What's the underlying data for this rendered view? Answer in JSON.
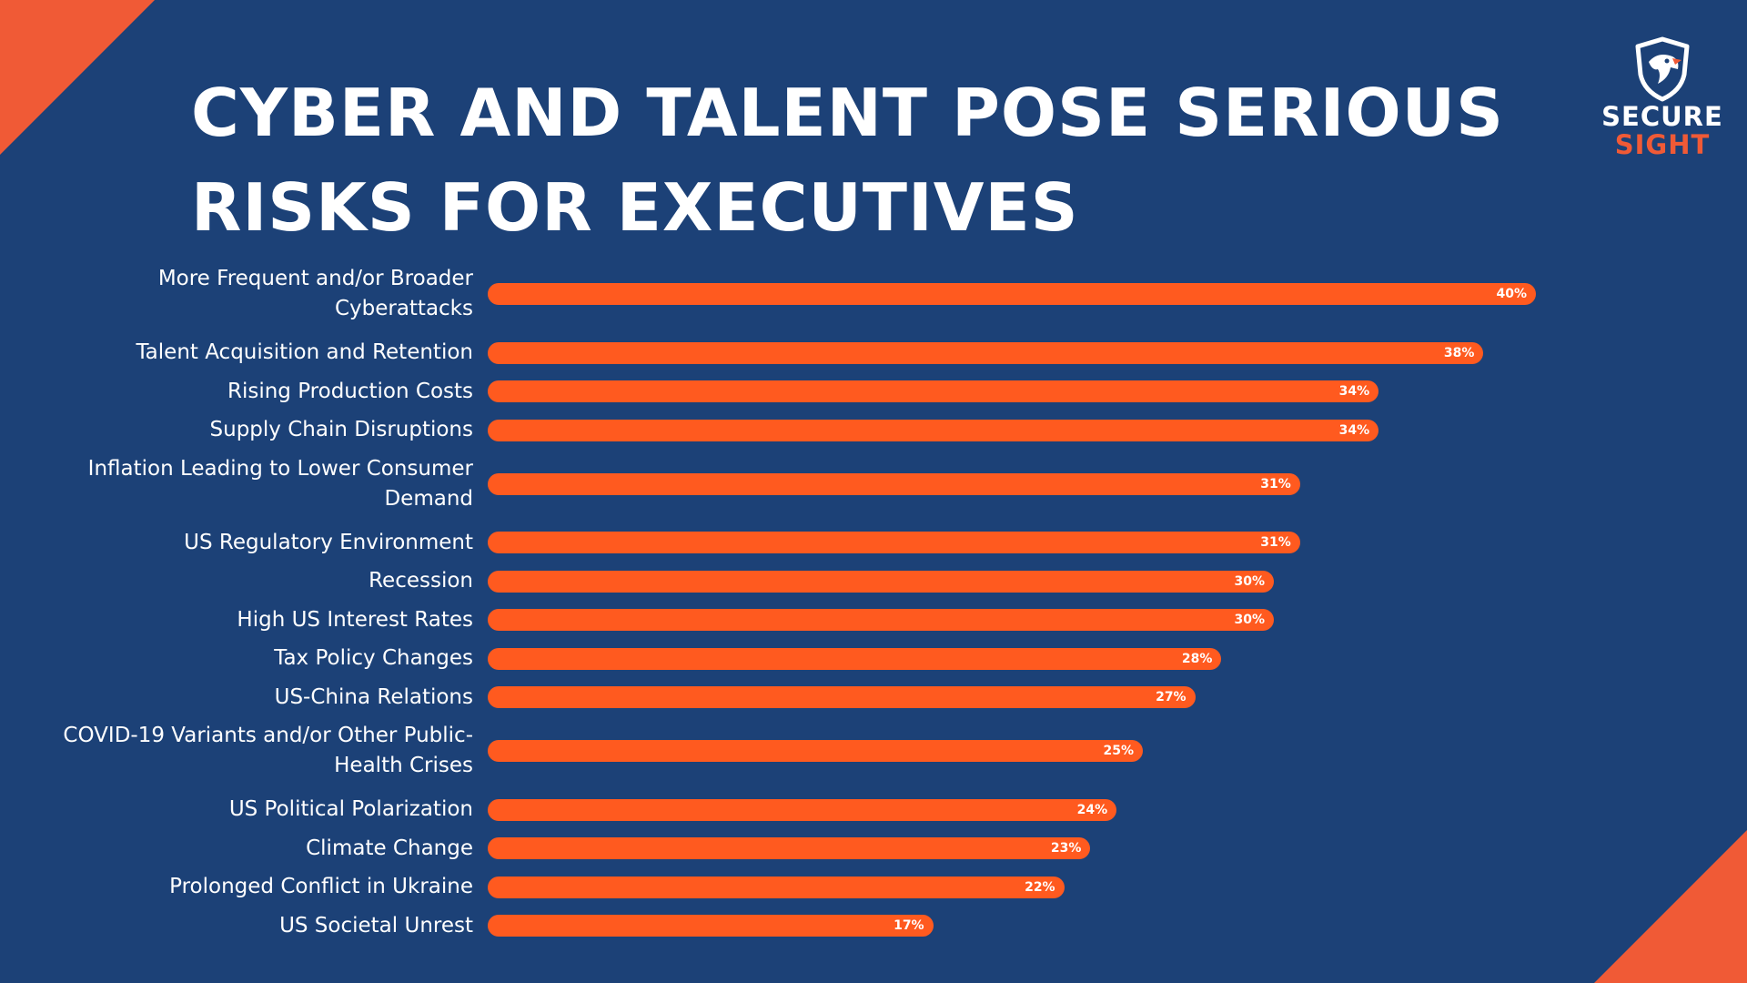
{
  "colors": {
    "background": "#1c4177",
    "accent": "#f05a36",
    "bar": "#ff5a1f",
    "text": "#ffffff"
  },
  "header": {
    "title": "CYBER AND TALENT POSE SERIOUS RISKS FOR EXECUTIVES"
  },
  "logo": {
    "icon": "eagle-shield-icon",
    "line1": "SECURE",
    "line2": "SIGHT"
  },
  "chart_data": {
    "type": "bar",
    "orientation": "horizontal",
    "title": "",
    "xlabel": "",
    "ylabel": "",
    "xlim": [
      0,
      40
    ],
    "grid": false,
    "legend": "none",
    "categories": [
      "More Frequent and/or Broader Cyberattacks",
      "Talent Acquisition and Retention",
      "Rising Production Costs",
      "Supply Chain Disruptions",
      "Inflation Leading to Lower Consumer Demand",
      "US Regulatory Environment",
      "Recession",
      "High US Interest Rates",
      "Tax Policy Changes",
      "US-China Relations",
      "COVID-19 Variants and/or Other Public-Health Crises",
      "US Political Polarization",
      "Climate Change",
      "Prolonged Conflict in Ukraine",
      "US Societal Unrest"
    ],
    "values": [
      40,
      38,
      34,
      34,
      31,
      31,
      30,
      30,
      28,
      27,
      25,
      24,
      23,
      22,
      17
    ],
    "value_labels": [
      "40%",
      "38%",
      "34%",
      "34%",
      "31%",
      "31%",
      "30%",
      "30%",
      "28%",
      "27%",
      "25%",
      "24%",
      "23%",
      "22%",
      "17%"
    ]
  }
}
